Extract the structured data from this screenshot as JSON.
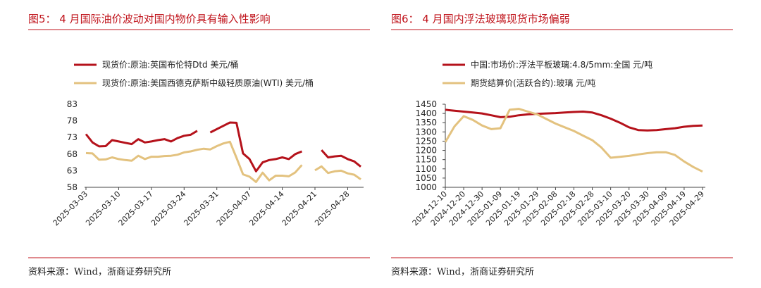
{
  "chart_data": [
    {
      "type": "line",
      "title": "图5：  4 月国际油价波动对国内物价具有输入性影响",
      "source": "资料来源：Wind，浙商证券研究所",
      "categories": [
        "2025-03-03",
        null,
        null,
        null,
        null,
        "2025-03-10",
        null,
        null,
        null,
        null,
        "2025-03-17",
        null,
        null,
        null,
        null,
        "2025-03-24",
        null,
        null,
        null,
        null,
        "2025-03-31",
        null,
        null,
        null,
        null,
        "2025-04-07",
        null,
        null,
        null,
        null,
        "2025-04-14",
        null,
        null,
        null,
        null,
        "2025-04-21",
        null,
        null,
        null,
        null,
        "2025-04-28",
        null,
        null
      ],
      "ylim": [
        58,
        83
      ],
      "yticks": [
        58,
        63,
        68,
        73,
        78,
        83
      ],
      "series": [
        {
          "name": "现货价:原油:英国布伦特Dtd 美元/桶",
          "color": "#b5121b",
          "values": [
            74,
            71.5,
            70.3,
            70.4,
            72.2,
            71.8,
            71.4,
            71,
            72.5,
            71.5,
            71.8,
            72.2,
            72.5,
            71.8,
            72.8,
            73.5,
            73.8,
            75,
            null,
            74.5,
            75.5,
            76.5,
            77.5,
            77.4,
            68.2,
            66.5,
            62.8,
            65.5,
            66.2,
            66.5,
            67,
            66.5,
            68,
            68.8,
            null,
            null,
            69.2,
            67,
            67.3,
            67.5,
            66.5,
            65.8,
            64.2
          ]
        },
        {
          "name": "现货价:原油:美国西德克萨斯中级轻质原油(WTI) 美元/桶",
          "color": "#e3c27f",
          "values": [
            68.3,
            68.2,
            66.3,
            66.4,
            67,
            66.5,
            66.2,
            66,
            67.5,
            66.5,
            67.2,
            67.2,
            67.4,
            67.5,
            67.8,
            68.5,
            68.8,
            69.3,
            69.6,
            69.4,
            70.4,
            71.2,
            71.7,
            66.9,
            61.9,
            61.2,
            59.6,
            62.4,
            60.1,
            61.5,
            61.5,
            61.3,
            62.5,
            64.7,
            null,
            63.1,
            64.3,
            62.3,
            62.8,
            63,
            62.2,
            61.8,
            60.4
          ]
        }
      ]
    },
    {
      "type": "line",
      "title": "图6：  4 月国内浮法玻璃现货市场偏弱",
      "source": "资料来源：Wind，浙商证券研究所",
      "categories": [
        "2024-12-10",
        null,
        "2024-12-20",
        null,
        "2024-12-30",
        null,
        "2025-01-09",
        null,
        "2025-01-19",
        null,
        "2025-01-29",
        null,
        "2025-02-08",
        null,
        "2025-02-18",
        null,
        "2025-02-28",
        null,
        "2025-03-10",
        null,
        "2025-03-20",
        null,
        "2025-03-30",
        null,
        "2025-04-09",
        null,
        "2025-04-19",
        null,
        "2025-04-29"
      ],
      "ylim": [
        1000,
        1450
      ],
      "yticks": [
        1000,
        1050,
        1100,
        1150,
        1200,
        1250,
        1300,
        1350,
        1400,
        1450
      ],
      "series": [
        {
          "name": "中国:市场价:浮法平板玻璃:4.8/5mm:全国 元/吨",
          "color": "#b5121b",
          "values": [
            1420,
            1415,
            1410,
            1405,
            1400,
            1390,
            1380,
            1382,
            1390,
            1395,
            1398,
            1400,
            1402,
            1405,
            1408,
            1410,
            1405,
            1390,
            1372,
            1350,
            1325,
            1310,
            1308,
            1310,
            1315,
            1320,
            1328,
            1333,
            1335
          ]
        },
        {
          "name": "期货结算价(活跃合约):玻璃 元/吨",
          "color": "#e3c27f",
          "values": [
            1245,
            1330,
            1385,
            1365,
            1335,
            1315,
            1320,
            1420,
            1425,
            1410,
            1395,
            1370,
            1345,
            1325,
            1305,
            1280,
            1255,
            1215,
            1160,
            1165,
            1170,
            1178,
            1185,
            1190,
            1190,
            1175,
            1140,
            1110,
            1085
          ]
        }
      ]
    }
  ]
}
